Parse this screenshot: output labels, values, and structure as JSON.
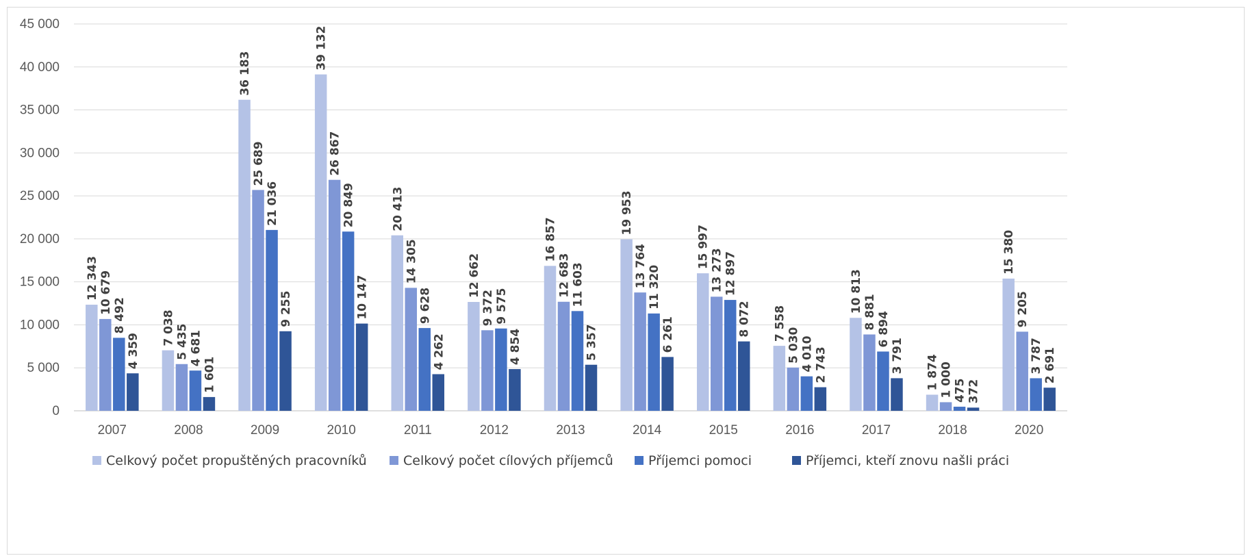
{
  "chart_data": {
    "type": "bar",
    "categories": [
      "2007",
      "2008",
      "2009",
      "2010",
      "2011",
      "2012",
      "2013",
      "2014",
      "2015",
      "2016",
      "2017",
      "2018",
      "2020"
    ],
    "series": [
      {
        "name": "Celkový počet propuštěných pracovníků",
        "color": "#b4c2e6",
        "values": [
          12343,
          7038,
          36183,
          39132,
          20413,
          12662,
          16857,
          19953,
          15997,
          7558,
          10813,
          1874,
          15380
        ],
        "labels": [
          "12 343",
          "7 038",
          "36 183",
          "39 132",
          "20 413",
          "12 662",
          "16 857",
          "19 953",
          "15 997",
          "7 558",
          "10 813",
          "1 874",
          "15 380"
        ]
      },
      {
        "name": "Celkový počet cílových příjemců",
        "color": "#7f97d6",
        "values": [
          10679,
          5435,
          25689,
          26867,
          14305,
          9372,
          12683,
          13764,
          13273,
          5030,
          8881,
          1000,
          9205
        ],
        "labels": [
          "10 679",
          "5 435",
          "25 689",
          "26 867",
          "14 305",
          "9 372",
          "12 683",
          "13 764",
          "13 273",
          "5 030",
          "8 881",
          "1 000",
          "9 205"
        ]
      },
      {
        "name": "Příjemci pomoci",
        "color": "#4472c4",
        "values": [
          8492,
          4681,
          21036,
          20849,
          9628,
          9575,
          11603,
          11320,
          12897,
          4010,
          6894,
          475,
          3787
        ],
        "labels": [
          "8 492",
          "4 681",
          "21 036",
          "20 849",
          "9 628",
          "9 575",
          "11 603",
          "11 320",
          "12 897",
          "4 010",
          "6 894",
          "475",
          "3 787"
        ]
      },
      {
        "name": "Příjemci, kteří znovu našli práci",
        "color": "#2f5597",
        "values": [
          4359,
          1601,
          9255,
          10147,
          4262,
          4854,
          5357,
          6261,
          8072,
          2743,
          3791,
          372,
          2691
        ],
        "labels": [
          "4 359",
          "1 601",
          "9 255",
          "10 147",
          "4 262",
          "4 854",
          "5 357",
          "6 261",
          "8 072",
          "2 743",
          "3 791",
          "372",
          "2 691"
        ]
      }
    ],
    "ylim": [
      0,
      45000
    ],
    "yticks": [
      0,
      5000,
      10000,
      15000,
      20000,
      25000,
      30000,
      35000,
      40000,
      45000
    ],
    "ytick_labels": [
      "0",
      "5 000",
      "10 000",
      "15 000",
      "20 000",
      "25 000",
      "30 000",
      "35 000",
      "40 000",
      "45 000"
    ],
    "grid": true,
    "legend_position": "bottom"
  }
}
